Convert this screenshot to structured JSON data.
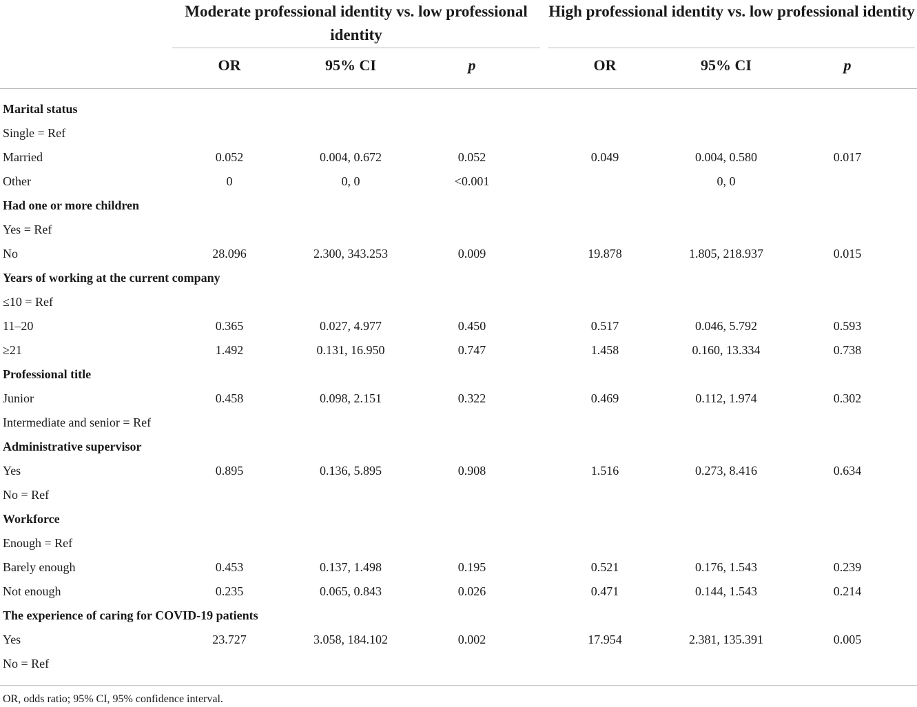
{
  "table": {
    "group_headers": [
      "Moderate professional identity vs. low professional identity",
      "High professional identity vs. low professional identity"
    ],
    "sub_headers": [
      "OR",
      "95% CI",
      "p",
      "OR",
      "95% CI",
      "p"
    ],
    "rows": [
      {
        "label": "Marital status",
        "header": true,
        "values": [
          "",
          "",
          "",
          "",
          "",
          ""
        ]
      },
      {
        "label": "Single = Ref",
        "header": false,
        "values": [
          "",
          "",
          "",
          "",
          "",
          ""
        ]
      },
      {
        "label": "Married",
        "header": false,
        "values": [
          "0.052",
          "0.004, 0.672",
          "0.052",
          "0.049",
          "0.004, 0.580",
          "0.017"
        ]
      },
      {
        "label": "Other",
        "header": false,
        "values": [
          "0",
          "0, 0",
          "<0.001",
          "",
          "0, 0",
          ""
        ]
      },
      {
        "label": "Had one or more children",
        "header": true,
        "values": [
          "",
          "",
          "",
          "",
          "",
          ""
        ]
      },
      {
        "label": "Yes = Ref",
        "header": false,
        "values": [
          "",
          "",
          "",
          "",
          "",
          ""
        ]
      },
      {
        "label": "No",
        "header": false,
        "values": [
          "28.096",
          "2.300, 343.253",
          "0.009",
          "19.878",
          "1.805, 218.937",
          "0.015"
        ]
      },
      {
        "label": "Years of working at the current company",
        "header": true,
        "values": [
          "",
          "",
          "",
          "",
          "",
          ""
        ]
      },
      {
        "label": "≤10 = Ref",
        "header": false,
        "values": [
          "",
          "",
          "",
          "",
          "",
          ""
        ]
      },
      {
        "label": "11–20",
        "header": false,
        "values": [
          "0.365",
          "0.027, 4.977",
          "0.450",
          "0.517",
          "0.046, 5.792",
          "0.593"
        ]
      },
      {
        "label": "≥21",
        "header": false,
        "values": [
          "1.492",
          "0.131, 16.950",
          "0.747",
          "1.458",
          "0.160, 13.334",
          "0.738"
        ]
      },
      {
        "label": "Professional title",
        "header": true,
        "values": [
          "",
          "",
          "",
          "",
          "",
          ""
        ]
      },
      {
        "label": "Junior",
        "header": false,
        "values": [
          "0.458",
          "0.098, 2.151",
          "0.322",
          "0.469",
          "0.112, 1.974",
          "0.302"
        ]
      },
      {
        "label": "Intermediate and senior = Ref",
        "header": false,
        "values": [
          "",
          "",
          "",
          "",
          "",
          ""
        ]
      },
      {
        "label": "Administrative supervisor",
        "header": true,
        "values": [
          "",
          "",
          "",
          "",
          "",
          ""
        ]
      },
      {
        "label": "Yes",
        "header": false,
        "values": [
          "0.895",
          "0.136, 5.895",
          "0.908",
          "1.516",
          "0.273, 8.416",
          "0.634"
        ]
      },
      {
        "label": "No = Ref",
        "header": false,
        "values": [
          "",
          "",
          "",
          "",
          "",
          ""
        ]
      },
      {
        "label": "Workforce",
        "header": true,
        "values": [
          "",
          "",
          "",
          "",
          "",
          ""
        ]
      },
      {
        "label": "Enough = Ref",
        "header": false,
        "values": [
          "",
          "",
          "",
          "",
          "",
          ""
        ]
      },
      {
        "label": "Barely enough",
        "header": false,
        "values": [
          "0.453",
          "0.137, 1.498",
          "0.195",
          "0.521",
          "0.176, 1.543",
          "0.239"
        ]
      },
      {
        "label": "Not enough",
        "header": false,
        "values": [
          "0.235",
          "0.065, 0.843",
          "0.026",
          "0.471",
          "0.144, 1.543",
          "0.214"
        ]
      },
      {
        "label": "The experience of caring for COVID-19 patients",
        "header": true,
        "values": [
          "",
          "",
          "",
          "",
          "",
          ""
        ]
      },
      {
        "label": "Yes",
        "header": false,
        "values": [
          "23.727",
          "3.058, 184.102",
          "0.002",
          "17.954",
          "2.381, 135.391",
          "0.005"
        ]
      },
      {
        "label": "No = Ref",
        "header": false,
        "values": [
          "",
          "",
          "",
          "",
          "",
          ""
        ]
      }
    ],
    "footnote": "OR, odds ratio; 95% CI, 95% confidence interval."
  }
}
